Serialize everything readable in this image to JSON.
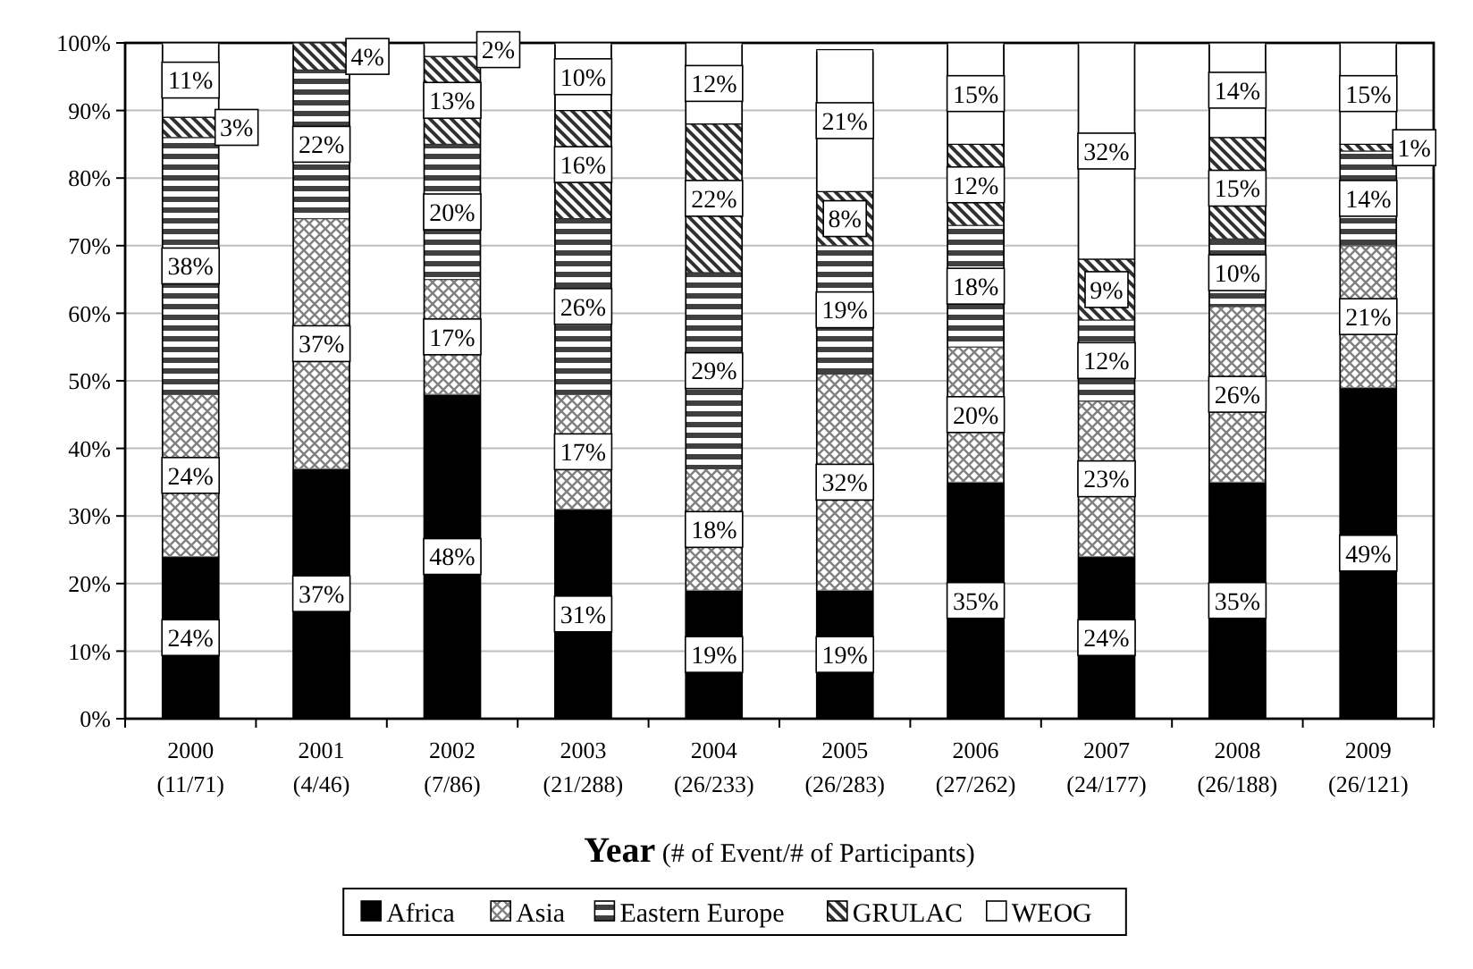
{
  "chart_data": {
    "type": "bar",
    "stacked": true,
    "xlabel": "Year (# of Event/# of Participants)",
    "categories": [
      "2000\n(11/71)",
      "2001\n(4/46)",
      "2002\n(7/86)",
      "2003\n(21/288)",
      "2004\n(26/233)",
      "2005\n(26/283)",
      "2006\n(27/262)",
      "2007\n(24/177)",
      "2008\n(26/188)",
      "2009\n(26/121)"
    ],
    "series": [
      {
        "name": "Africa",
        "color": "#000000",
        "values": [
          24,
          37,
          48,
          31,
          19,
          19,
          35,
          24,
          35,
          49
        ],
        "value_labels": [
          "24%",
          "37%",
          "48%",
          "31%",
          "19%",
          "19%",
          "35%",
          "24%",
          "35%",
          "49%"
        ]
      },
      {
        "name": "Asia",
        "color": "#808080",
        "values": [
          24,
          37,
          17,
          17,
          18,
          32,
          20,
          23,
          26,
          21
        ],
        "value_labels": [
          "24%",
          "37%",
          "17%",
          "17%",
          "18%",
          "32%",
          "20%",
          "23%",
          "26%",
          "21%"
        ]
      },
      {
        "name": "Eastern Europe",
        "color": "#404040",
        "values": [
          38,
          22,
          20,
          26,
          29,
          19,
          18,
          12,
          10,
          14
        ],
        "value_labels": [
          "38%",
          "22%",
          "20%",
          "26%",
          "29%",
          "19%",
          "18%",
          "12%",
          "10%",
          "14%"
        ]
      },
      {
        "name": "GRULAC",
        "color": "#303030",
        "values": [
          3,
          4,
          13,
          16,
          22,
          8,
          12,
          9,
          15,
          1
        ],
        "value_labels": [
          "3%",
          "4%",
          "13%",
          "16%",
          "22%",
          "8%",
          "12%",
          "9%",
          "15%",
          "1%"
        ]
      },
      {
        "name": "WEOG",
        "color": "#ffffff",
        "values": [
          11,
          null,
          2,
          10,
          12,
          21,
          15,
          32,
          14,
          15
        ],
        "value_labels": [
          "11%",
          null,
          "2%",
          "10%",
          "12%",
          "21%",
          "15%",
          "32%",
          "14%",
          "15%"
        ]
      }
    ],
    "ylim": [
      0,
      100
    ],
    "yticks": [
      {
        "value": 0,
        "label": "0%"
      },
      {
        "value": 10,
        "label": "10%"
      },
      {
        "value": 20,
        "label": "20%"
      },
      {
        "value": 30,
        "label": "30%"
      },
      {
        "value": 40,
        "label": "40%"
      },
      {
        "value": 50,
        "label": "50%"
      },
      {
        "value": 60,
        "label": "60%"
      },
      {
        "value": 70,
        "label": "70%"
      },
      {
        "value": 80,
        "label": "80%"
      },
      {
        "value": 90,
        "label": "90%"
      },
      {
        "value": 100,
        "label": "100%"
      }
    ],
    "grid": "y",
    "legend": "bottom"
  }
}
